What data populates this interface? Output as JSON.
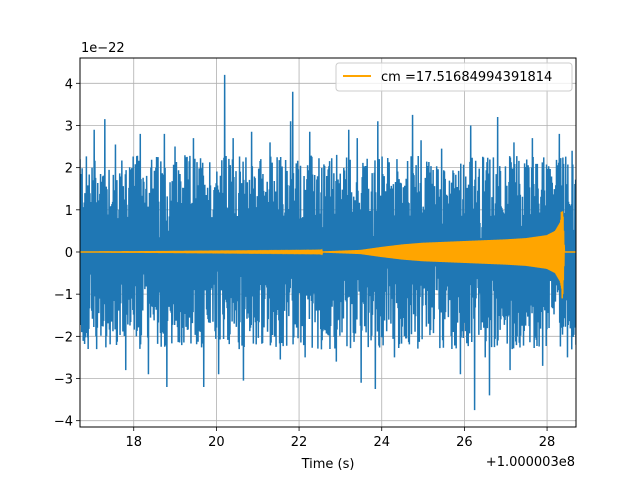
{
  "chart_data": {
    "type": "line",
    "title": "",
    "xlabel": "Time (s)",
    "ylabel": "",
    "x_offset_label": "+1.000003e8",
    "y_scale_label": "1e−22",
    "xlim": [
      16.7,
      28.7
    ],
    "ylim": [
      -4.15,
      4.6
    ],
    "x_ticks": [
      18,
      20,
      22,
      24,
      26,
      28
    ],
    "x_tick_labels": [
      "18",
      "20",
      "22",
      "24",
      "26",
      "28"
    ],
    "y_ticks": [
      -4,
      -3,
      -2,
      -1,
      0,
      1,
      2,
      3,
      4
    ],
    "y_tick_labels": [
      "−4",
      "−3",
      "−2",
      "−1",
      "0",
      "1",
      "2",
      "3",
      "4"
    ],
    "grid": true,
    "legend_position": "top-right",
    "series": [
      {
        "name": "",
        "color": "#1f77b4",
        "kind": "noise",
        "x_range": [
          16.7,
          28.7
        ],
        "typical_amplitude": 2.1,
        "peaks": [
          {
            "x": 16.7,
            "y": 2.2
          },
          {
            "x": 16.9,
            "y": -2.3
          },
          {
            "x": 17.05,
            "y": 2.9
          },
          {
            "x": 17.3,
            "y": 3.15
          },
          {
            "x": 17.55,
            "y": 2.55
          },
          {
            "x": 17.8,
            "y": -2.8
          },
          {
            "x": 18.15,
            "y": 2.8
          },
          {
            "x": 18.35,
            "y": -2.9
          },
          {
            "x": 18.75,
            "y": 2.8
          },
          {
            "x": 18.8,
            "y": -3.2
          },
          {
            "x": 19.0,
            "y": 2.5
          },
          {
            "x": 19.45,
            "y": 2.7
          },
          {
            "x": 19.7,
            "y": -3.2
          },
          {
            "x": 20.05,
            "y": -2.9
          },
          {
            "x": 20.2,
            "y": 4.2
          },
          {
            "x": 20.4,
            "y": 2.7
          },
          {
            "x": 20.65,
            "y": -3.05
          },
          {
            "x": 20.85,
            "y": 2.85
          },
          {
            "x": 21.3,
            "y": 2.6
          },
          {
            "x": 21.55,
            "y": -2.55
          },
          {
            "x": 21.8,
            "y": 3.1
          },
          {
            "x": 21.85,
            "y": 3.8
          },
          {
            "x": 22.15,
            "y": -2.5
          },
          {
            "x": 22.25,
            "y": 2.85
          },
          {
            "x": 22.75,
            "y": -2.3
          },
          {
            "x": 22.9,
            "y": -2.6
          },
          {
            "x": 23.2,
            "y": 2.9
          },
          {
            "x": 23.4,
            "y": 2.7
          },
          {
            "x": 23.5,
            "y": -3.1
          },
          {
            "x": 23.85,
            "y": -3.25
          },
          {
            "x": 23.9,
            "y": 3.1
          },
          {
            "x": 24.3,
            "y": -2.5
          },
          {
            "x": 24.75,
            "y": 3.25
          },
          {
            "x": 24.95,
            "y": 2.65
          },
          {
            "x": 25.45,
            "y": 2.45
          },
          {
            "x": 25.7,
            "y": -2.3
          },
          {
            "x": 25.9,
            "y": -2.9
          },
          {
            "x": 26.15,
            "y": 3.0
          },
          {
            "x": 26.25,
            "y": -3.75
          },
          {
            "x": 26.5,
            "y": -2.5
          },
          {
            "x": 26.6,
            "y": -3.4
          },
          {
            "x": 26.8,
            "y": 3.2
          },
          {
            "x": 27.1,
            "y": -2.8
          },
          {
            "x": 27.2,
            "y": 2.6
          },
          {
            "x": 27.65,
            "y": 2.7
          },
          {
            "x": 27.9,
            "y": -2.7
          },
          {
            "x": 28.3,
            "y": 2.8
          },
          {
            "x": 28.5,
            "y": -2.5
          },
          {
            "x": 28.6,
            "y": 2.4
          },
          {
            "x": 28.7,
            "y": -2.2
          }
        ]
      },
      {
        "name": "cm =17.51684994391814",
        "color": "#ffa500",
        "kind": "chirp",
        "x_range": [
          16.7,
          28.7
        ],
        "envelope": [
          {
            "x": 16.7,
            "y": 0.0
          },
          {
            "x": 22.5,
            "y": 0.01
          },
          {
            "x": 23.5,
            "y": 0.05
          },
          {
            "x": 24.0,
            "y": 0.12
          },
          {
            "x": 24.5,
            "y": 0.18
          },
          {
            "x": 25.0,
            "y": 0.22
          },
          {
            "x": 26.0,
            "y": 0.26
          },
          {
            "x": 27.0,
            "y": 0.3
          },
          {
            "x": 27.5,
            "y": 0.33
          },
          {
            "x": 28.0,
            "y": 0.4
          },
          {
            "x": 28.2,
            "y": 0.5
          },
          {
            "x": 28.32,
            "y": 0.7
          },
          {
            "x": 28.38,
            "y": 1.0
          },
          {
            "x": 28.42,
            "y": 0.0
          },
          {
            "x": 28.7,
            "y": 0.0
          }
        ],
        "extremes": [
          {
            "x": 28.35,
            "y": 0.95
          },
          {
            "x": 28.36,
            "y": -1.1
          }
        ]
      }
    ]
  }
}
